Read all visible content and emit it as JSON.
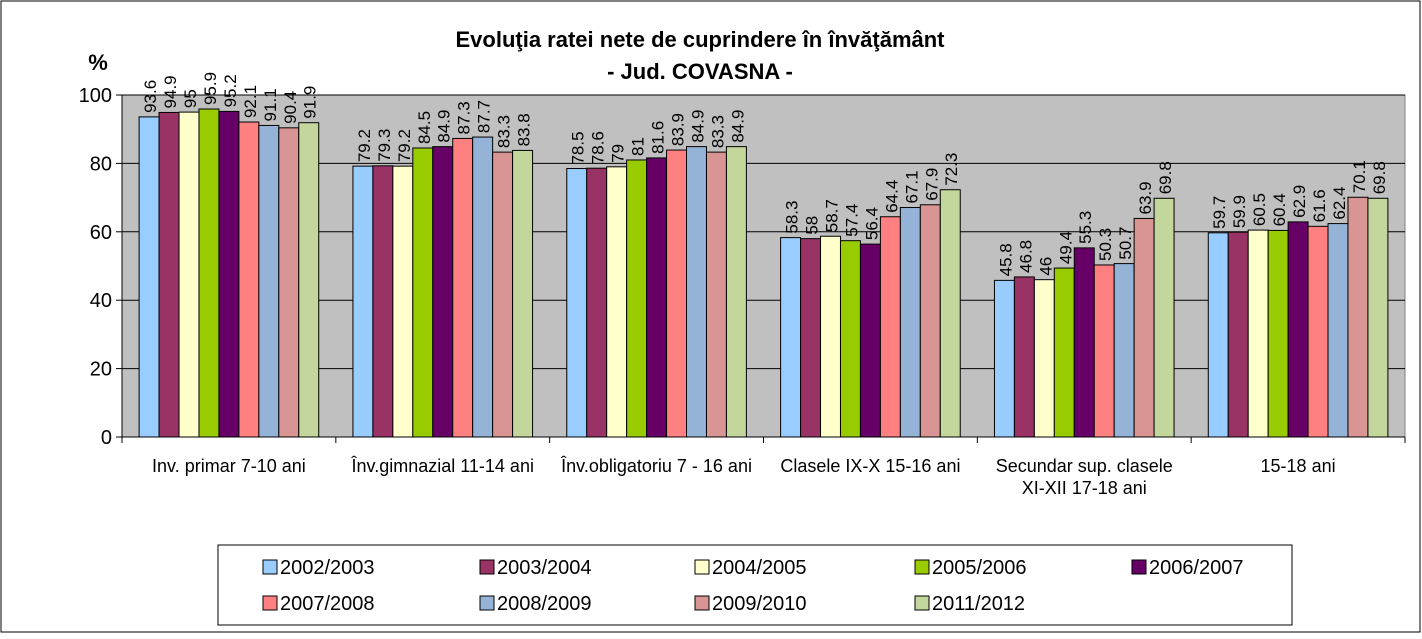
{
  "chart_data": {
    "type": "bar",
    "title": "Evoluţia ratei nete de cuprindere în învăţământ",
    "subtitle": "- Jud. COVASNA -",
    "y_label": "%",
    "categories": [
      "Inv. primar 7-10 ani",
      "Înv.gimnazial 11-14 ani",
      "Înv.obligatoriu 7 - 16 ani",
      "Clasele IX-X 15-16 ani",
      "Secundar sup. clasele XI-XII 17-18 ani",
      "15-18 ani"
    ],
    "series": [
      {
        "name": "2002/2003",
        "color": "#99ccff",
        "values": [
          93.6,
          79.2,
          78.5,
          58.3,
          45.8,
          59.7
        ]
      },
      {
        "name": "2003/2004",
        "color": "#993366",
        "values": [
          94.9,
          79.3,
          78.6,
          58,
          46.8,
          59.9
        ]
      },
      {
        "name": "2004/2005",
        "color": "#ffffcc",
        "values": [
          95,
          79.2,
          79,
          58.7,
          46,
          60.5
        ]
      },
      {
        "name": "2005/2006",
        "color": "#99cc00",
        "values": [
          95.9,
          84.5,
          81,
          57.4,
          49.4,
          60.4
        ]
      },
      {
        "name": "2006/2007",
        "color": "#660066",
        "values": [
          95.2,
          84.9,
          81.6,
          56.4,
          55.3,
          62.9
        ]
      },
      {
        "name": "2007/2008",
        "color": "#ff8080",
        "values": [
          92.1,
          87.3,
          83.9,
          64.4,
          50.3,
          61.6
        ]
      },
      {
        "name": "2008/2009",
        "color": "#95b3d7",
        "values": [
          91.1,
          87.7,
          84.9,
          67.1,
          50.7,
          62.4
        ]
      },
      {
        "name": "2009/2010",
        "color": "#d99594",
        "values": [
          90.4,
          83.3,
          83.3,
          67.9,
          63.9,
          70.1
        ]
      },
      {
        "name": "2011/2012",
        "color": "#c3d69b",
        "values": [
          91.9,
          83.8,
          84.9,
          72.3,
          69.8,
          69.8
        ]
      }
    ],
    "ylim": [
      0,
      100
    ],
    "yticks": [
      0,
      20,
      40,
      60,
      80,
      100
    ],
    "grid": true,
    "legend": "bottom"
  }
}
